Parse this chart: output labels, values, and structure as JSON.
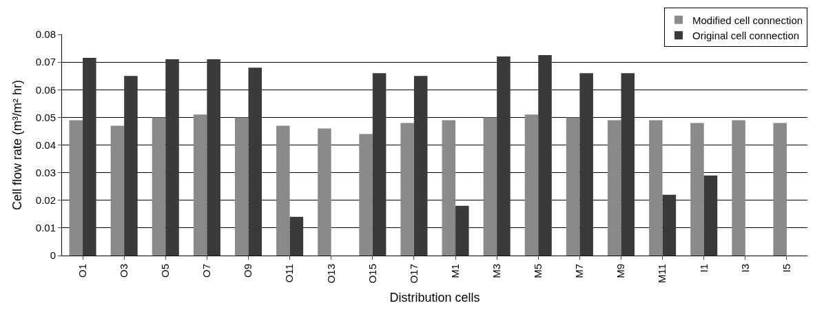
{
  "chart_data": {
    "type": "bar",
    "xlabel": "Distribution cells",
    "ylabel": "Cell flow rate (m³/m² hr)",
    "categories": [
      "O1",
      "O3",
      "O5",
      "O7",
      "O9",
      "O11",
      "O13",
      "O15",
      "O17",
      "M1",
      "M3",
      "M5",
      "M7",
      "M9",
      "M11",
      "I1",
      "I3",
      "I5"
    ],
    "series": [
      {
        "name": "Modified cell connection",
        "color": "#8a8a8a",
        "values": [
          0.049,
          0.047,
          0.05,
          0.051,
          0.05,
          0.047,
          0.046,
          0.044,
          0.048,
          0.049,
          0.05,
          0.051,
          0.05,
          0.049,
          0.049,
          0.048,
          0.049,
          0.048
        ]
      },
      {
        "name": "Original cell connection",
        "color": "#3a3a3a",
        "values": [
          0.0715,
          0.065,
          0.071,
          0.071,
          0.068,
          0.014,
          null,
          0.066,
          0.065,
          0.018,
          0.072,
          0.0725,
          0.066,
          0.066,
          0.022,
          0.029,
          null,
          null
        ]
      }
    ],
    "ylim": [
      0,
      0.08
    ],
    "yticks": [
      0,
      0.01,
      0.02,
      0.03,
      0.04,
      0.05,
      0.06,
      0.07,
      0.08
    ],
    "grid": "y",
    "legend": "top right"
  }
}
